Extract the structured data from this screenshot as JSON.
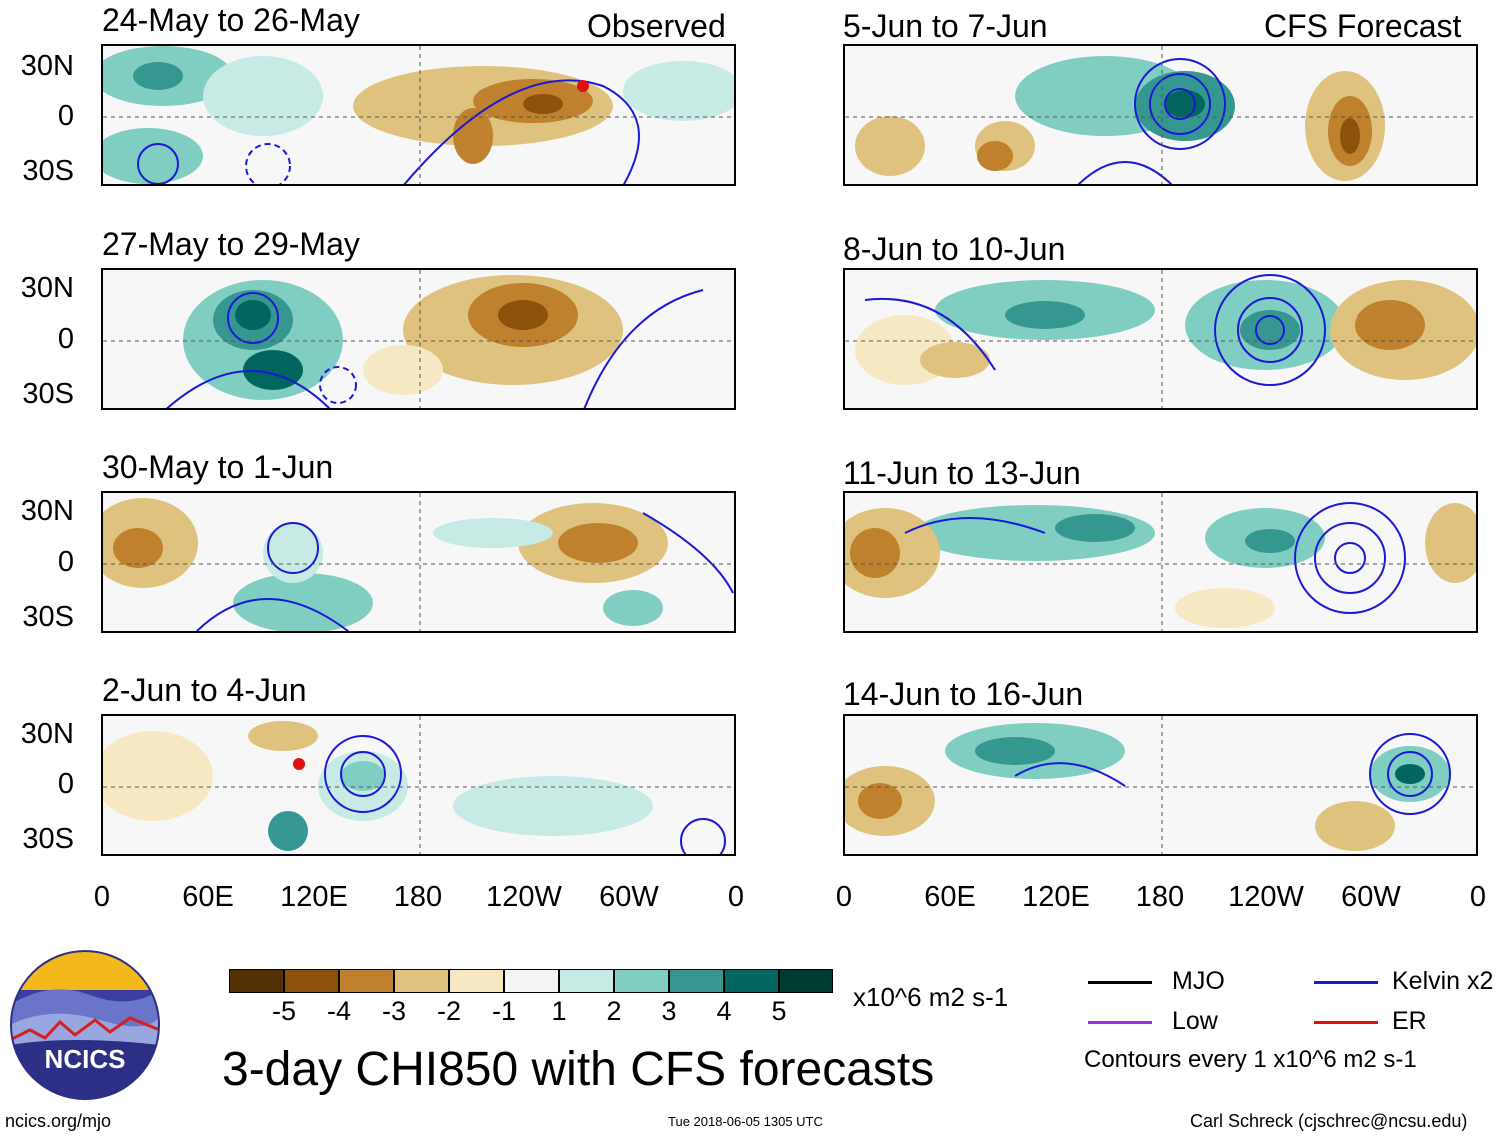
{
  "title": "3-day CHI850 with CFS forecasts",
  "observed_label": "Observed",
  "forecast_label": "CFS Forecast",
  "panels_left": [
    {
      "title": "24-May to 26-May"
    },
    {
      "title": "27-May to 29-May"
    },
    {
      "title": "30-May to 1-Jun"
    },
    {
      "title": "2-Jun to 4-Jun"
    }
  ],
  "panels_right": [
    {
      "title": "5-Jun to 7-Jun"
    },
    {
      "title": "8-Jun to 10-Jun"
    },
    {
      "title": "11-Jun to 13-Jun"
    },
    {
      "title": "14-Jun to 16-Jun"
    }
  ],
  "lat_labels": [
    "30N",
    "0",
    "30S"
  ],
  "lon_labels": [
    "0",
    "60E",
    "120E",
    "180",
    "120W",
    "60W",
    "0"
  ],
  "colorbar": {
    "units": "x10^6 m2 s-1",
    "ticks": [
      "-5",
      "-4",
      "-3",
      "-2",
      "-1",
      "1",
      "2",
      "3",
      "4",
      "5"
    ],
    "colors": [
      "#543005",
      "#8c510a",
      "#bf812d",
      "#dfc27d",
      "#f6e8c3",
      "#f5f5f5",
      "#c7eae5",
      "#80cdc1",
      "#35978f",
      "#01665e",
      "#003c30"
    ]
  },
  "legend": {
    "items": [
      {
        "label": "MJO",
        "color": "#000000"
      },
      {
        "label": "Kelvin x2",
        "color": "#1a1ad6"
      },
      {
        "label": "Low",
        "color": "#9b30d9"
      },
      {
        "label": "ER",
        "color": "#e01010"
      }
    ],
    "contour_note": "Contours every 1 x10^6 m2 s-1"
  },
  "logo_text": "NCICS",
  "footer": {
    "url": "ncics.org/mjo",
    "timestamp": "Tue 2018-06-05 1305 UTC",
    "author": "Carl Schreck (cjschrec@ncsu.edu)"
  },
  "chart_data": {
    "type": "heatmap",
    "title": "3-day CHI850 with CFS forecasts",
    "variable": "CHI850 anomaly",
    "units": "x10^6 m2 s-1",
    "color_levels": [
      -5,
      -4,
      -3,
      -2,
      -1,
      1,
      2,
      3,
      4,
      5
    ],
    "x_ticks": [
      "0",
      "60E",
      "120E",
      "180",
      "120W",
      "60W",
      "0"
    ],
    "y_ticks": [
      "30N",
      "0",
      "30S"
    ],
    "panels": [
      {
        "title": "24-May to 26-May",
        "source": "Observed"
      },
      {
        "title": "27-May to 29-May",
        "source": "Observed"
      },
      {
        "title": "30-May to 1-Jun",
        "source": "Observed"
      },
      {
        "title": "2-Jun to 4-Jun",
        "source": "Observed"
      },
      {
        "title": "5-Jun to 7-Jun",
        "source": "CFS Forecast"
      },
      {
        "title": "8-Jun to 10-Jun",
        "source": "CFS Forecast"
      },
      {
        "title": "11-Jun to 13-Jun",
        "source": "CFS Forecast"
      },
      {
        "title": "14-Jun to 16-Jun",
        "source": "CFS Forecast"
      }
    ],
    "contour_interval": 1
  }
}
